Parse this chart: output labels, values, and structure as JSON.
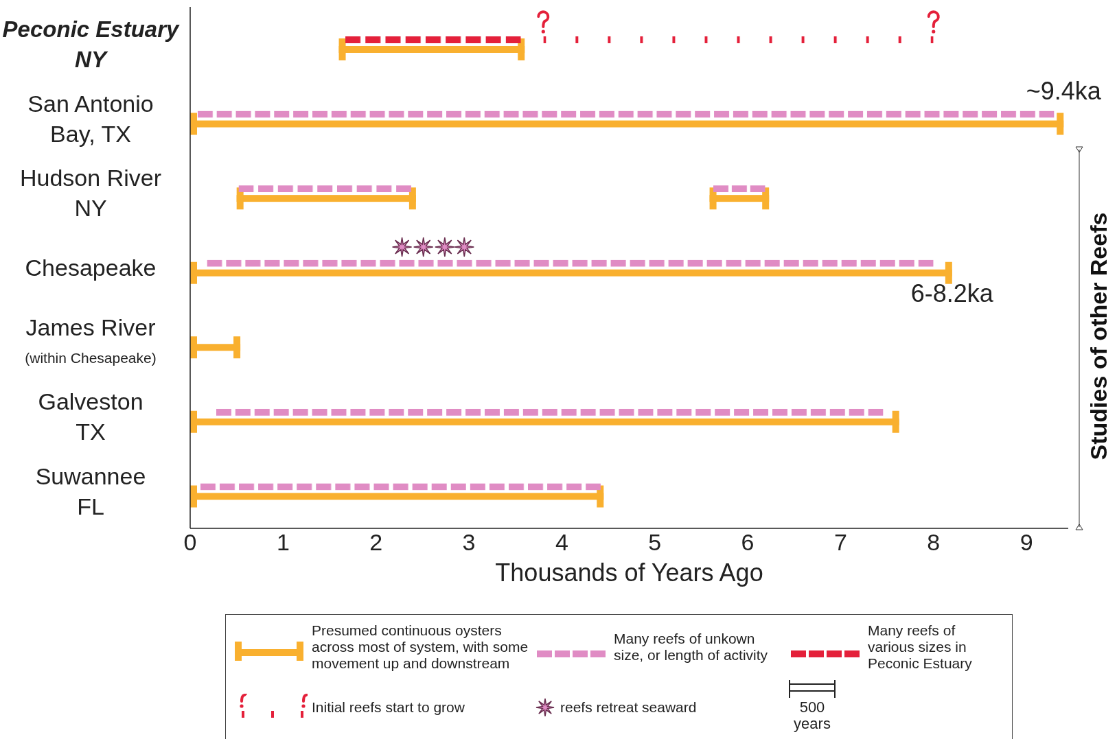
{
  "chart_data": {
    "type": "bar",
    "orientation": "horizontal",
    "categories": [
      "Peconic Estuary\nNY",
      "San Antonio\nBay, TX",
      "Hudson River\nNY",
      "Chesapeake",
      "James River\n(within Chesapeake)",
      "Galveston\nTX",
      "Suwannee\nFL"
    ],
    "xlabel": "Thousands of Years Ago",
    "xlim": [
      0,
      9.45
    ],
    "xticks": [
      0,
      1,
      2,
      3,
      4,
      5,
      6,
      7,
      8,
      9
    ],
    "grid": false,
    "legend": "bottom",
    "series": [
      {
        "name": "Presumed continuous oysters across most of system, with some movement up and downstream",
        "color": "#f9b02f",
        "line_style": "solid",
        "base": [
          1.6,
          0,
          0.5,
          0,
          0,
          0,
          0
        ],
        "values": [
          2.0,
          9.4,
          1.93,
          8.2,
          0.54,
          7.63,
          4.45
        ]
      },
      {
        "color": "#f9b02f",
        "line_style": "solid",
        "base": [
          null,
          null,
          5.59,
          null,
          null,
          null,
          null
        ],
        "values": [
          null,
          null,
          0.64,
          null,
          null,
          null,
          null
        ]
      },
      {
        "name": "Many reefs of unkown size, or length of activity",
        "color": "#e08cc4",
        "line_style": "dashed",
        "base": [
          null,
          0.08,
          0.52,
          0.18,
          null,
          0.28,
          0.11
        ],
        "values": [
          null,
          9.22,
          1.86,
          7.82,
          null,
          7.18,
          4.31
        ]
      },
      {
        "color": "#e08cc4",
        "line_style": "dashed",
        "base": [
          null,
          null,
          5.63,
          null,
          null,
          null,
          null
        ],
        "values": [
          null,
          null,
          0.56,
          null,
          null,
          null,
          null
        ]
      },
      {
        "name": "Many reefs of various sizes in Peconic Estuary",
        "color": "#e4203a",
        "line_style": "dashed",
        "base": [
          1.67,
          null,
          null,
          null,
          null,
          null,
          null
        ],
        "values": [
          1.89,
          null,
          null,
          null,
          null,
          null,
          null
        ]
      },
      {
        "name": "Initial reefs start to grow",
        "color": "#e4203a",
        "line_style": "dotted",
        "base": [
          3.8,
          null,
          null,
          null,
          null,
          null,
          null
        ],
        "values": [
          4.2,
          null,
          null,
          null,
          null,
          null,
          null
        ]
      },
      {
        "name": "reefs retreat seaward",
        "type": "scatter",
        "marker": "star",
        "color": "#e08cc4",
        "x": [
          "Chesapeake",
          "Chesapeake",
          "Chesapeake",
          "Chesapeake"
        ],
        "values": [
          2.28,
          2.51,
          2.74,
          2.95
        ]
      }
    ],
    "annotations": [
      {
        "text": "~9.4ka",
        "x": 9.4,
        "y": "San Antonio\nBay, TX"
      },
      {
        "text": "6-8.2ka",
        "x": 8.2,
        "y": "Chesapeake"
      },
      "Studies of other Reefs",
      "500 years"
    ]
  }
}
